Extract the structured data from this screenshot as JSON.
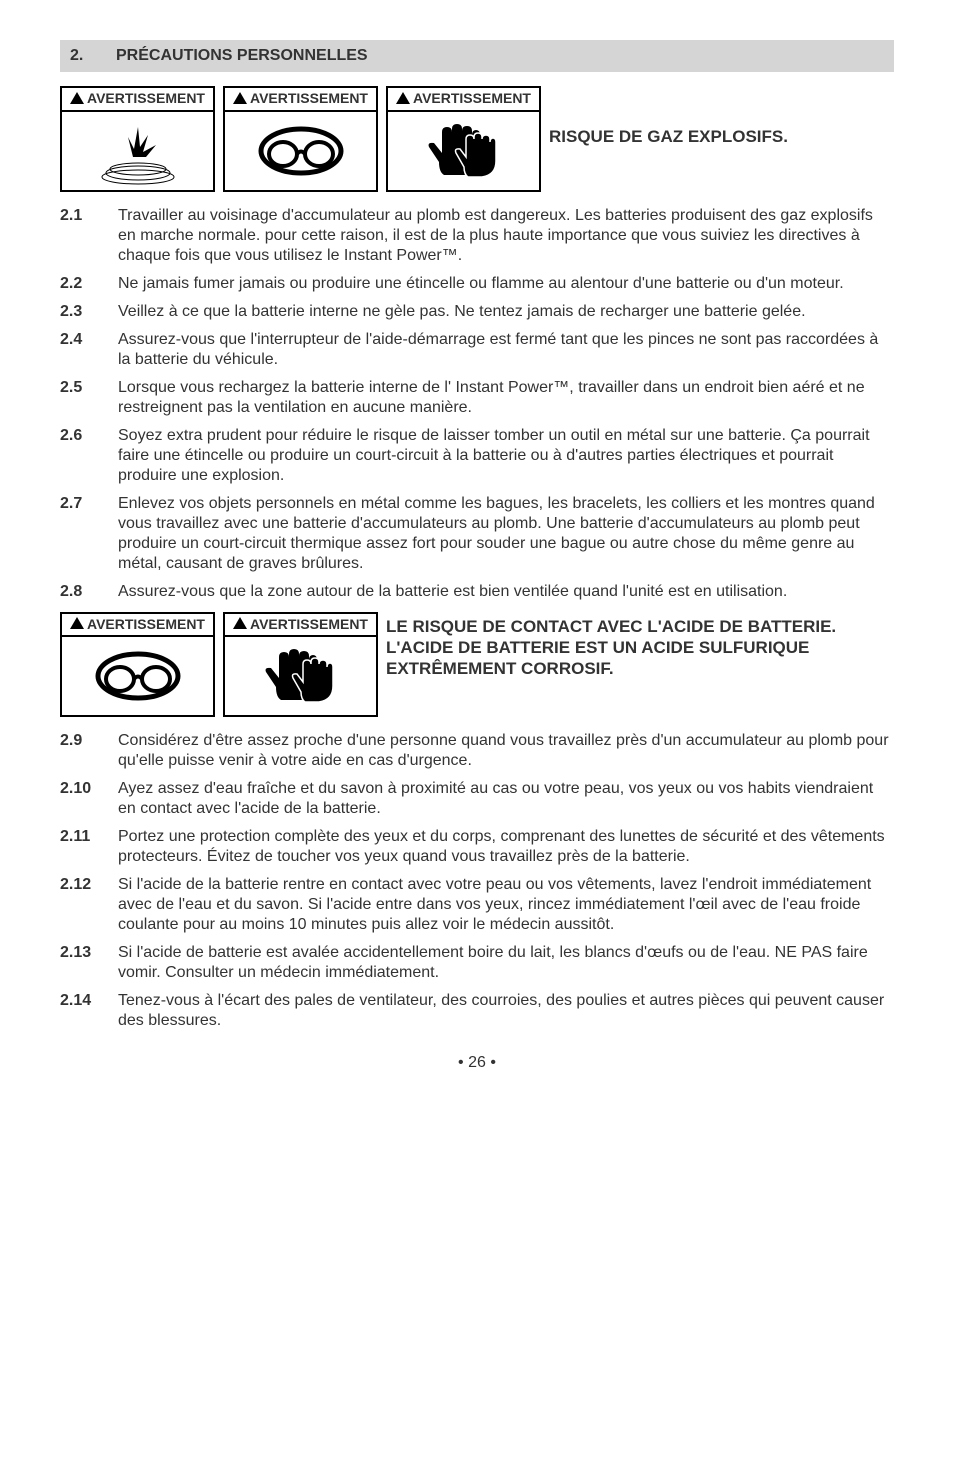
{
  "section": {
    "number": "2.",
    "title": "PRÉCAUTIONS PERSONNELLES"
  },
  "warn_label": "AVERTISSEMENT",
  "warn1_title": "RISQUE DE GAZ EXPLOSIFS.",
  "warn2_title": "LE RISQUE DE CONTACT AVEC L'ACIDE DE BATTERIE. L'ACIDE DE BATTERIE EST UN ACIDE SULFURIQUE EXTRÊMEMENT CORROSIF.",
  "items_a": [
    {
      "ref": "2.1",
      "txt": "Travailler au voisinage d'accumulateur au plomb est dangereux. Les batteries produisent des gaz explosifs en marche normale. pour cette raison, il est de la plus haute importance que vous suiviez les directives à chaque fois que vous utilisez le Instant Power™."
    },
    {
      "ref": "2.2",
      "txt": "Ne jamais fumer jamais ou produire une étincelle ou flamme au alentour d'une batterie ou d'un moteur."
    },
    {
      "ref": "2.3",
      "txt": "Veillez à ce que la batterie interne ne gèle pas. Ne tentez jamais de recharger une batterie gelée."
    },
    {
      "ref": "2.4",
      "txt": "Assurez-vous que l'interrupteur de l'aide-démarrage est fermé tant que les pinces ne sont pas raccordées à la batterie du véhicule."
    },
    {
      "ref": "2.5",
      "txt": "Lorsque vous rechargez la batterie interne de l' Instant Power™, travailler dans un endroit bien aéré et ne restreignent pas la ventilation en aucune manière."
    },
    {
      "ref": "2.6",
      "txt": "Soyez extra prudent pour réduire le risque de laisser tomber un outil en métal sur une batterie. Ça pourrait faire une étincelle ou produire un court-circuit à la batterie ou à d'autres parties électriques et pourrait produire une explosion."
    },
    {
      "ref": "2.7",
      "txt": "Enlevez vos objets personnels en métal comme les bagues, les bracelets, les colliers et les montres quand vous travaillez avec une batterie d'accumulateurs au plomb. Une batterie d'accumulateurs au plomb peut produire un court-circuit thermique assez fort pour souder une bague ou autre chose du même genre au métal, causant de graves brûlures."
    },
    {
      "ref": "2.8",
      "txt": "Assurez-vous que la zone autour de la batterie est bien ventilée quand l'unité est en utilisation."
    }
  ],
  "items_b": [
    {
      "ref": "2.9",
      "txt": "Considérez d'être assez proche d'une personne quand vous travaillez près d'un accumulateur au plomb pour qu'elle puisse venir à votre aide en cas d'urgence."
    },
    {
      "ref": "2.10",
      "txt": "Ayez assez d'eau fraîche et du savon à proximité au cas ou votre peau, vos yeux ou vos habits viendraient en contact avec l'acide de la batterie."
    },
    {
      "ref": "2.11",
      "txt": "Portez une protection complète des yeux et du corps, comprenant des lunettes de sécurité et des vêtements protecteurs. Évitez de toucher vos yeux quand vous travaillez près de la batterie."
    },
    {
      "ref": "2.12",
      "txt": "Si l'acide de la batterie rentre en contact avec votre peau ou vos vêtements, lavez l'endroit immédiatement avec de l'eau et du savon. Si l'acide entre dans vos yeux, rincez immédiatement l'œil avec de l'eau froide coulante pour au moins 10 minutes puis allez voir le médecin aussitôt."
    },
    {
      "ref": "2.13",
      "txt": "Si l'acide de batterie est avalée accidentellement boire du lait, les blancs d'œufs ou de l'eau. NE PAS faire vomir. Consulter un médecin immédiatement."
    },
    {
      "ref": "2.14",
      "txt": "Tenez-vous à l'écart des pales de ventilateur, des courroies, des poulies et autres pièces qui peuvent causer des blessures."
    }
  ],
  "page": "• 26 •"
}
